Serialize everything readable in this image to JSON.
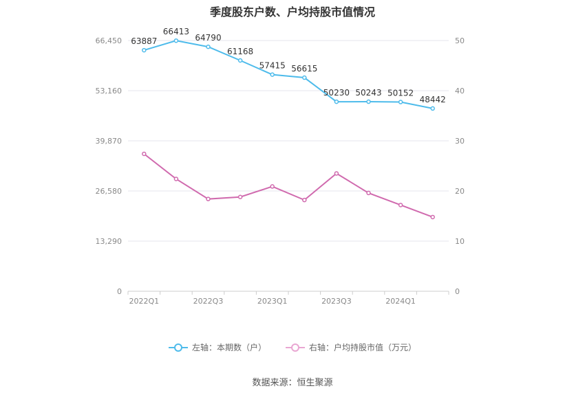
{
  "chart_data": {
    "type": "line",
    "title": "季度股东户数、户均持股市值情况",
    "x": [
      "2022Q1",
      "2022Q2",
      "2022Q3",
      "2022Q4",
      "2023Q1",
      "2023Q2",
      "2023Q3",
      "2023Q4",
      "2024Q1",
      "2024Q2"
    ],
    "x_tick_labels": [
      "2022Q1",
      "2022Q3",
      "2023Q1",
      "2023Q3",
      "2024Q1"
    ],
    "left_axis": {
      "ylim": [
        0,
        66450
      ],
      "ticks": [
        "0",
        "13,290",
        "26,580",
        "39,870",
        "53,160",
        "66,450"
      ]
    },
    "right_axis": {
      "ylim": [
        0,
        50
      ],
      "ticks": [
        "0",
        "10",
        "20",
        "30",
        "40",
        "50"
      ]
    },
    "grid": true,
    "legend_position": "bottom",
    "series": [
      {
        "name": "左轴：本期数（户）",
        "axis": "left",
        "color": "#4dbbeb",
        "values": [
          63887,
          66413,
          64790,
          61168,
          57415,
          56615,
          50230,
          50243,
          50152,
          48442
        ],
        "labels": [
          "63887",
          "66413",
          "64790",
          "61168",
          "57415",
          "56615",
          "50230",
          "50243",
          "50152",
          "48442"
        ]
      },
      {
        "name": "右轴：户均持股市值（万元）",
        "axis": "right",
        "color": "#d06aae",
        "values": [
          27.4,
          22.4,
          18.4,
          18.8,
          20.9,
          18.2,
          23.5,
          19.6,
          17.2,
          14.8
        ]
      }
    ]
  },
  "footer": {
    "source": "数据来源：恒生聚源"
  }
}
